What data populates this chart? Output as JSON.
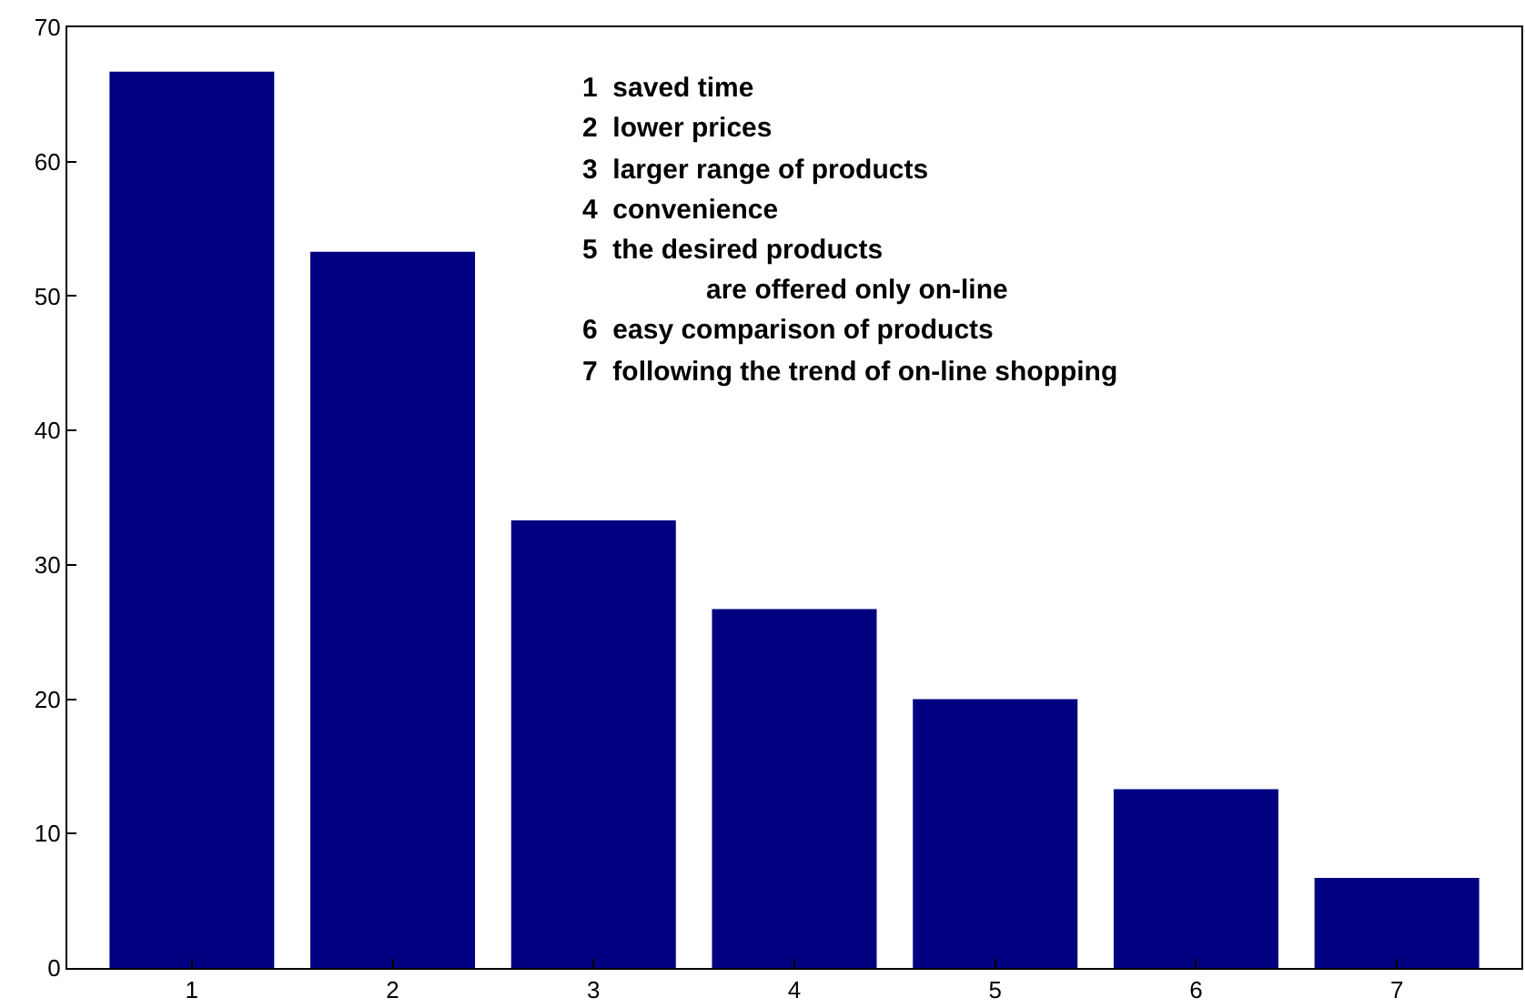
{
  "chart_data": {
    "type": "bar",
    "categories": [
      "1",
      "2",
      "3",
      "4",
      "5",
      "6",
      "7"
    ],
    "values": [
      66.7,
      53.3,
      33.3,
      26.7,
      20,
      13.3,
      6.7
    ],
    "color": "#000080",
    "ylim": [
      0,
      70
    ],
    "yticks": [
      0,
      10,
      20,
      30,
      40,
      50,
      60,
      70
    ],
    "legend": false,
    "annotations": [
      "1  saved time",
      "2  lower prices",
      "3  larger range of products",
      "4  convenience",
      "5  the desired products",
      "are offered only on-line",
      "6  easy comparison of products",
      "7  following the trend of on-line shopping"
    ]
  }
}
